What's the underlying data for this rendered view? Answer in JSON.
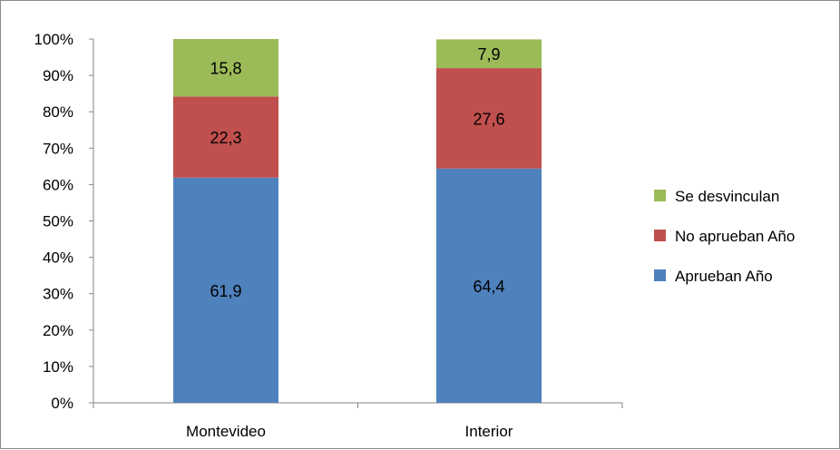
{
  "chart_data": {
    "type": "bar",
    "stacked": true,
    "categories": [
      "Montevideo",
      "Interior"
    ],
    "series": [
      {
        "name": "Aprueban Año",
        "color": "#4F81BD",
        "values": [
          61.9,
          64.4
        ],
        "labels": [
          "61,9",
          "64,4"
        ]
      },
      {
        "name": "No aprueban Año",
        "color": "#C0504D",
        "values": [
          22.3,
          27.6
        ],
        "labels": [
          "22,3",
          "27,6"
        ]
      },
      {
        "name": "Se desvinculan",
        "color": "#9BBB59",
        "values": [
          15.8,
          7.9
        ],
        "labels": [
          "15,8",
          "7,9"
        ]
      }
    ],
    "y_ticks": [
      "0%",
      "10%",
      "20%",
      "30%",
      "40%",
      "50%",
      "60%",
      "70%",
      "80%",
      "90%",
      "100%"
    ],
    "ylim": [
      0,
      100
    ],
    "legend_position": "right",
    "legend_order": [
      "Se desvinculan",
      "No aprueban Año",
      "Aprueban Año"
    ],
    "grid": false
  }
}
